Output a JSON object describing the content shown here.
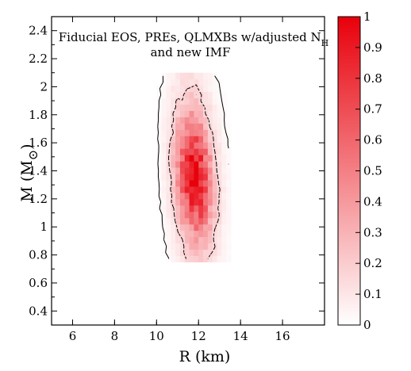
{
  "chart_data": {
    "type": "heatmap",
    "title_lines": [
      "Fiducial EOS, PREs, QLMXBs w/adjusted N",
      "and new IMF"
    ],
    "title_subscript": "H",
    "xlabel": "R (km)",
    "ylabel_main": "M (M",
    "ylabel_sub": "⊙",
    "ylabel_close": ")",
    "xlim": [
      5,
      18
    ],
    "ylim": [
      0.3,
      2.5
    ],
    "x_ticks": [
      6,
      8,
      10,
      12,
      14,
      16
    ],
    "y_ticks": [
      0.4,
      0.6,
      0.8,
      1,
      1.2,
      1.4,
      1.6,
      1.8,
      2,
      2.2,
      2.4
    ],
    "colorbar": {
      "range": [
        0,
        1
      ],
      "ticks": [
        0,
        0.1,
        0.2,
        0.3,
        0.4,
        0.5,
        0.6,
        0.7,
        0.8,
        0.9,
        1
      ],
      "color_low": "#ffffff",
      "color_high": "#e8000b"
    },
    "distribution": {
      "peak_R": 11.8,
      "peak_M": 1.36,
      "sigma_R_along": 0.55,
      "sigma_M": 0.26,
      "tilt_dR_per_dM": -1.3,
      "cell_R": 0.22,
      "cell_M": 0.045
    },
    "contour_levels": [
      0.02,
      0.16
    ]
  }
}
